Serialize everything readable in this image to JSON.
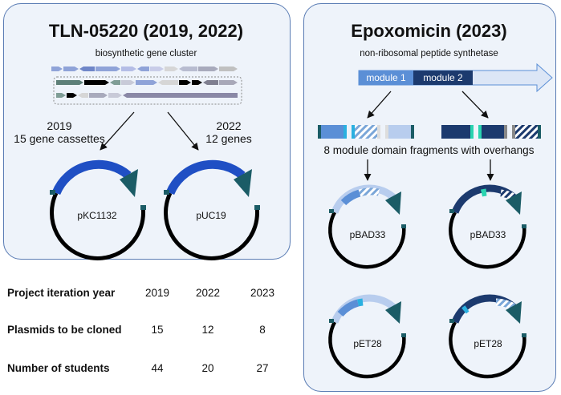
{
  "left_panel": {
    "title": "TLN-05220 (2019, 2022)",
    "subtitle": "biosynthetic gene cluster",
    "label_2019_year": "2019",
    "label_2019_desc": "15 gene cassettes",
    "label_2022_year": "2022",
    "label_2022_desc": "12 genes",
    "plasmid_left": "pKC1132",
    "plasmid_right": "pUC19"
  },
  "right_panel": {
    "title": "Epoxomicin (2023)",
    "subtitle": "non-ribosomal peptide synthetase",
    "module_1": "module 1",
    "module_2": "module 2",
    "fragments_label": "8 module domain fragments with overhangs",
    "plasmid_top_left": "pBAD33",
    "plasmid_top_right": "pBAD33",
    "plasmid_bottom_left": "pET28",
    "plasmid_bottom_right": "pET28"
  },
  "table": {
    "rows": [
      {
        "label": "Project iteration year",
        "values": [
          "2019",
          "2022",
          "2023"
        ]
      },
      {
        "label": "Plasmids to be cloned",
        "values": [
          "15",
          "12",
          "8"
        ]
      },
      {
        "label": "Number of students",
        "values": [
          "44",
          "20",
          "27"
        ]
      }
    ]
  },
  "colors": {
    "panel_fill": "#eef3fa",
    "panel_border": "#5a7cb4",
    "insert_blue": "#1f4fc4",
    "teal": "#1b5c66",
    "module1": "#5b8fd6",
    "module2": "#1c3a6e",
    "arrow_light": "#dce6f6"
  }
}
